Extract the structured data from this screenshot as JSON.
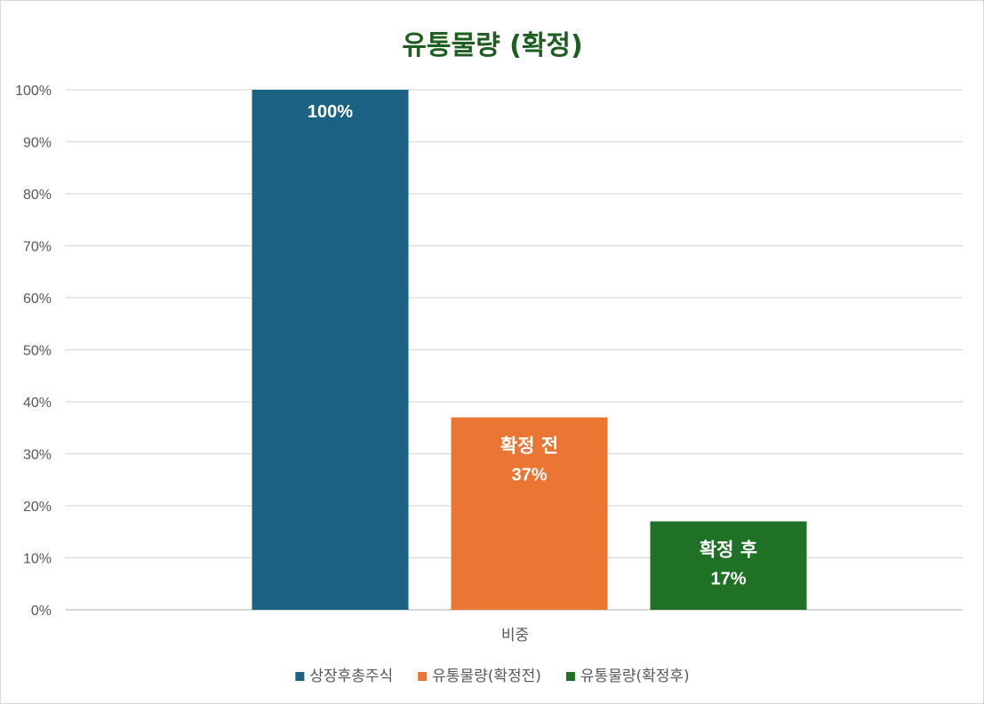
{
  "chart_data": {
    "type": "bar",
    "title": "유통물량 (확정)",
    "categories": [
      "비중"
    ],
    "series": [
      {
        "name": "상장후총주식",
        "values": [
          100
        ],
        "color": "#1a6184",
        "label_text": "",
        "label_value": "100%"
      },
      {
        "name": "유통물량(확정전)",
        "values": [
          37
        ],
        "color": "#eb7533",
        "label_text": "확정 전",
        "label_value": "37%"
      },
      {
        "name": "유통물량(확정후)",
        "values": [
          17
        ],
        "color": "#1e7125",
        "label_text": "확정 후",
        "label_value": "17%"
      }
    ],
    "ylim": [
      0,
      100
    ],
    "yticks": [
      0,
      10,
      20,
      30,
      40,
      50,
      60,
      70,
      80,
      90,
      100
    ],
    "ytick_format": "%",
    "grid": true,
    "legend": "bottom",
    "xlabel": "",
    "ylabel": ""
  }
}
